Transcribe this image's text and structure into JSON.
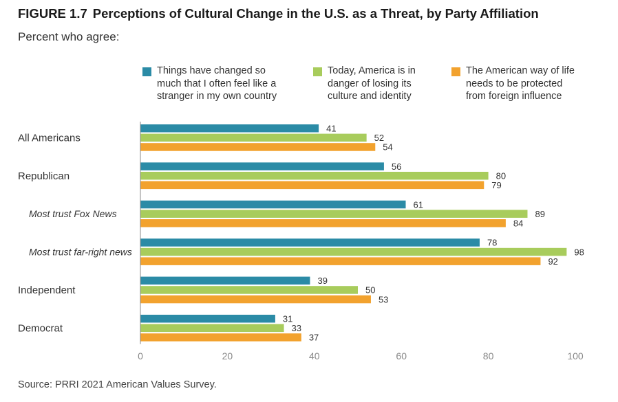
{
  "header": {
    "figure_number": "FIGURE 1.7",
    "title": "Perceptions of Cultural Change in the U.S. as a Threat, by Party Affiliation",
    "subtitle": "Percent who agree:"
  },
  "legend": [
    {
      "line1": "Things have changed so",
      "line2": "much that I often feel like a",
      "line3": "stranger in my own country",
      "color": "#2b8ba6"
    },
    {
      "line1": "Today, America is in",
      "line2": "danger of losing its",
      "line3": "culture and identity",
      "color": "#a8cc5c"
    },
    {
      "line1": "The American way of life",
      "line2": "needs to be protected",
      "line3": "from foreign influence",
      "color": "#f2a22e"
    }
  ],
  "footer": {
    "source": "Source: PRRI 2021 American Values Survey."
  },
  "chart_data": {
    "type": "bar",
    "orientation": "horizontal",
    "categories": [
      "All Americans",
      "Republican",
      "Most trust Fox News",
      "Most trust far-right news",
      "Independent",
      "Democrat"
    ],
    "italic_categories": [
      "Most trust Fox News",
      "Most trust far-right news"
    ],
    "series": [
      {
        "name": "Things have changed so much that I often feel like a stranger in my own country",
        "color": "#2b8ba6",
        "values": [
          41,
          56,
          61,
          78,
          39,
          31
        ]
      },
      {
        "name": "Today, America is in danger of losing its culture and identity",
        "color": "#a8cc5c",
        "values": [
          52,
          80,
          89,
          98,
          50,
          33
        ]
      },
      {
        "name": "The American way of life needs to be protected from foreign influence",
        "color": "#f2a22e",
        "values": [
          54,
          79,
          84,
          92,
          53,
          37
        ]
      }
    ],
    "xlim": [
      0,
      100
    ],
    "xticks": [
      0,
      20,
      40,
      60,
      80,
      100
    ],
    "grid": false,
    "legend_position": "top"
  }
}
